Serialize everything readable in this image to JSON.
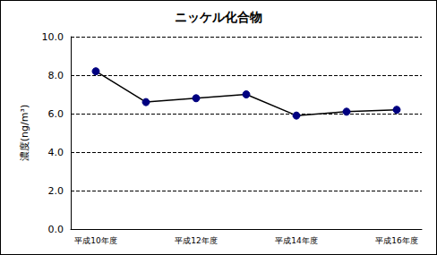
{
  "chart_data": {
    "type": "line",
    "title": "ニッケル化合物",
    "y_label": "濃度(ng/m³)",
    "categories": [
      "平成10年度",
      null,
      "平成12年度",
      null,
      "平成14年度",
      null,
      "平成16年度"
    ],
    "series": [
      {
        "name": "ニッケル化合物",
        "color": "#000080",
        "marker": "circle",
        "line_style": "solid",
        "values": [
          8.2,
          6.6,
          6.8,
          7.0,
          5.9,
          6.1,
          6.2
        ]
      }
    ],
    "ylim": [
      0,
      10
    ],
    "yticks": [
      {
        "value": 0,
        "label": "0.0"
      },
      {
        "value": 2,
        "label": "2.0"
      },
      {
        "value": 4,
        "label": "4.0"
      },
      {
        "value": 6,
        "label": "6.0"
      },
      {
        "value": 8,
        "label": "8.0"
      },
      {
        "value": 10,
        "label": "10.0"
      }
    ],
    "grid": true
  }
}
